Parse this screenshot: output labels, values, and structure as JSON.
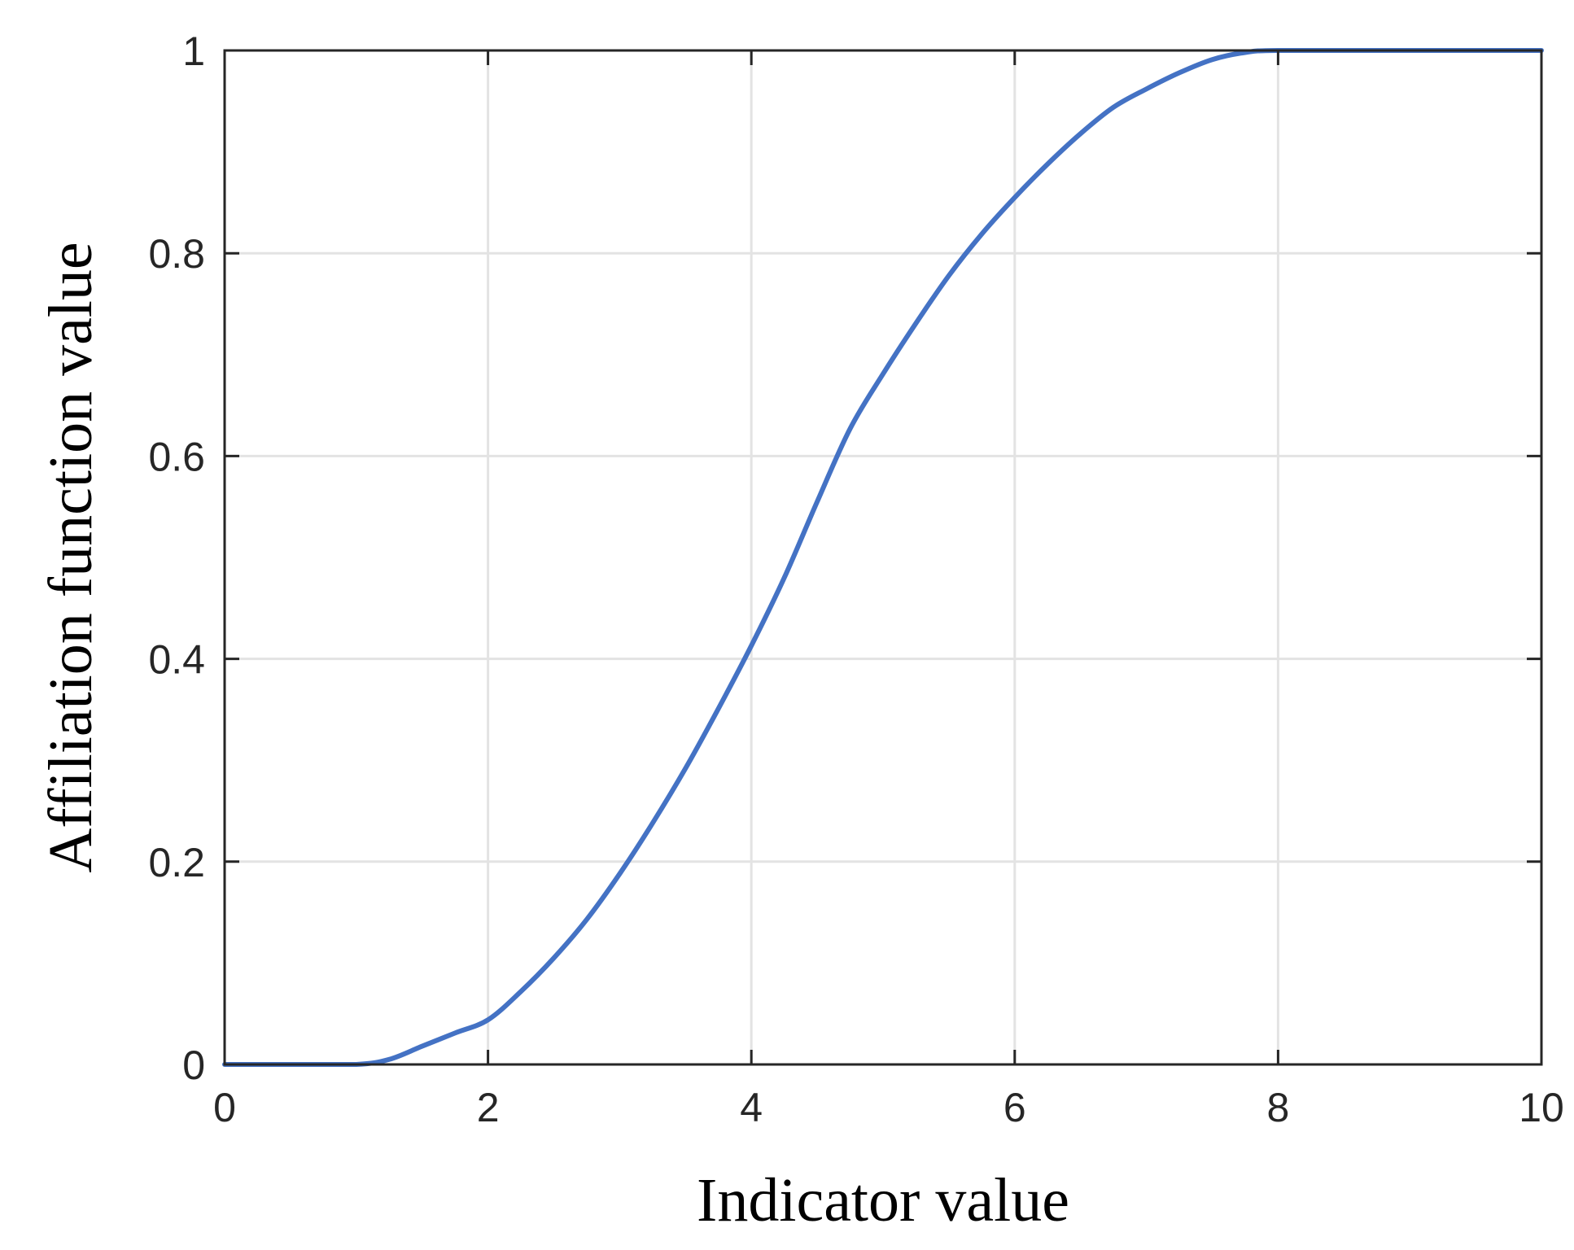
{
  "chart_data": {
    "type": "line",
    "title": "",
    "xlabel": "Indicator value",
    "ylabel": "Affiliation function value",
    "xlim": [
      0,
      10
    ],
    "ylim": [
      0,
      1
    ],
    "xticks": [
      0,
      2,
      4,
      6,
      8,
      10
    ],
    "xtick_labels": [
      "0",
      "2",
      "4",
      "6",
      "8",
      "10"
    ],
    "yticks": [
      0,
      0.2,
      0.4,
      0.6,
      0.8,
      1
    ],
    "ytick_labels": [
      "0",
      "0.2",
      "0.4",
      "0.6",
      "0.8",
      "1"
    ],
    "grid": true,
    "series": [
      {
        "color": "#4472c4",
        "x": [
          0,
          0.5,
          1,
          1.25,
          1.5,
          1.75,
          2,
          2.25,
          2.5,
          2.75,
          3,
          3.25,
          3.5,
          3.75,
          4,
          4.25,
          4.5,
          4.75,
          5,
          5.25,
          5.5,
          5.75,
          6,
          6.25,
          6.5,
          6.75,
          7,
          7.25,
          7.5,
          7.75,
          8,
          9,
          10
        ],
        "y": [
          0,
          0,
          0,
          0.005,
          0.018,
          0.031,
          0.044,
          0.072,
          0.105,
          0.143,
          0.188,
          0.238,
          0.292,
          0.351,
          0.413,
          0.48,
          0.555,
          0.627,
          0.681,
          0.731,
          0.778,
          0.819,
          0.855,
          0.888,
          0.918,
          0.944,
          0.962,
          0.978,
          0.991,
          0.998,
          1,
          1,
          1
        ]
      }
    ]
  },
  "colors": {
    "line": "#4472c4",
    "grid": "#e3e3e3",
    "axis": "#262626"
  }
}
